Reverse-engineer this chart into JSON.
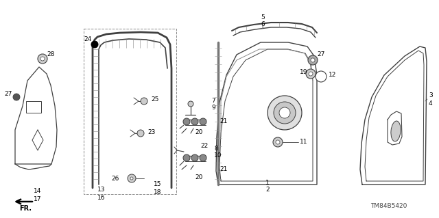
{
  "part_code": "TM84B5420",
  "bg": "#ffffff",
  "lc": "#404040",
  "tc": "#000000",
  "figw": 6.4,
  "figh": 3.19,
  "dpi": 100
}
